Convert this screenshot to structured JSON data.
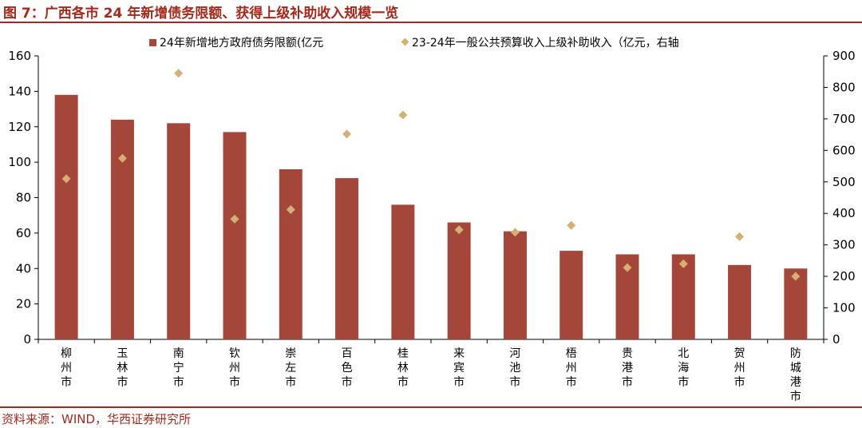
{
  "header": {
    "title": "图 7：广西各市 24 年新增债务限额、获得上级补助收入规模一览"
  },
  "footer": {
    "source": "资料来源：WIND，华西证券研究所"
  },
  "colors": {
    "bar": "#a5463a",
    "marker": "#d4b073",
    "accent": "#a5281b",
    "axis": "#000000"
  },
  "chart_data": {
    "type": "bar",
    "categories": [
      "柳州市",
      "玉林市",
      "南宁市",
      "钦州市",
      "崇左市",
      "百色市",
      "桂林市",
      "来宾市",
      "河池市",
      "梧州市",
      "贵港市",
      "北海市",
      "贺州市",
      "防城港市"
    ],
    "series": [
      {
        "name": "24年新增地方政府债务限额(亿元",
        "type": "bar",
        "axis": "left",
        "values": [
          138,
          124,
          122,
          117,
          96,
          91,
          76,
          66,
          61,
          50,
          48,
          48,
          42,
          40
        ]
      },
      {
        "name": "23-24年一般公共预算收入上级补助收入（亿元，右轴",
        "type": "scatter",
        "axis": "right",
        "values": [
          510,
          575,
          845,
          382,
          412,
          652,
          712,
          348,
          340,
          362,
          228,
          240,
          326,
          200
        ]
      }
    ],
    "ylim_left": [
      0,
      160
    ],
    "yticks_left": [
      0,
      20,
      40,
      60,
      80,
      100,
      120,
      140,
      160
    ],
    "ylim_right": [
      0,
      900
    ],
    "yticks_right": [
      0,
      100,
      200,
      300,
      400,
      500,
      600,
      700,
      800,
      900
    ],
    "grid": false,
    "legend_position": "top"
  }
}
